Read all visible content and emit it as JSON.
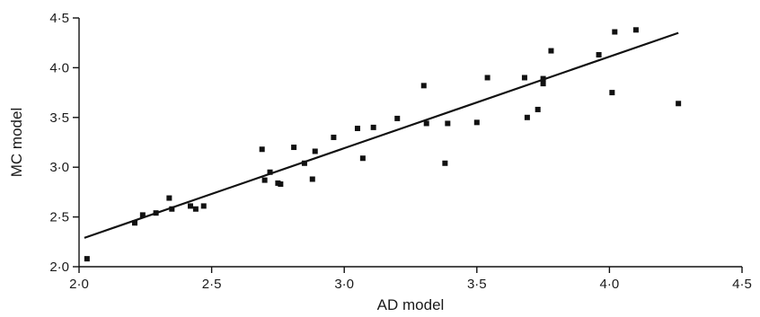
{
  "chart_data": {
    "type": "scatter",
    "xlabel": "AD model",
    "ylabel": "MC model",
    "xlim": [
      2.0,
      4.5
    ],
    "ylim": [
      2.0,
      4.5
    ],
    "xticks": [
      2.0,
      2.5,
      3.0,
      3.5,
      4.0,
      4.5
    ],
    "yticks": [
      2.0,
      2.5,
      3.0,
      3.5,
      4.0,
      4.5
    ],
    "xtick_labels": [
      "2·0",
      "2·5",
      "3·0",
      "3·5",
      "4·0",
      "4·5"
    ],
    "ytick_labels": [
      "2·0",
      "2·5",
      "3·0",
      "3·5",
      "4·0",
      "4·5"
    ],
    "grid": false,
    "marker": "square",
    "color": "#111111",
    "points": [
      [
        2.03,
        2.08
      ],
      [
        2.21,
        2.44
      ],
      [
        2.24,
        2.52
      ],
      [
        2.29,
        2.54
      ],
      [
        2.34,
        2.69
      ],
      [
        2.35,
        2.58
      ],
      [
        2.42,
        2.61
      ],
      [
        2.44,
        2.58
      ],
      [
        2.47,
        2.61
      ],
      [
        2.69,
        3.18
      ],
      [
        2.7,
        2.87
      ],
      [
        2.72,
        2.95
      ],
      [
        2.75,
        2.84
      ],
      [
        2.76,
        2.83
      ],
      [
        2.81,
        3.2
      ],
      [
        2.85,
        3.04
      ],
      [
        2.88,
        2.88
      ],
      [
        2.89,
        3.16
      ],
      [
        2.96,
        3.3
      ],
      [
        3.05,
        3.39
      ],
      [
        3.07,
        3.09
      ],
      [
        3.11,
        3.4
      ],
      [
        3.2,
        3.49
      ],
      [
        3.3,
        3.82
      ],
      [
        3.31,
        3.44
      ],
      [
        3.38,
        3.04
      ],
      [
        3.39,
        3.44
      ],
      [
        3.5,
        3.45
      ],
      [
        3.54,
        3.9
      ],
      [
        3.68,
        3.9
      ],
      [
        3.69,
        3.5
      ],
      [
        3.73,
        3.58
      ],
      [
        3.75,
        3.84
      ],
      [
        3.75,
        3.89
      ],
      [
        3.78,
        4.17
      ],
      [
        3.96,
        4.13
      ],
      [
        4.01,
        3.75
      ],
      [
        4.02,
        4.36
      ],
      [
        4.1,
        4.38
      ],
      [
        4.26,
        3.64
      ]
    ],
    "fit_line": {
      "x": [
        2.02,
        4.26
      ],
      "y": [
        2.29,
        4.35
      ]
    }
  }
}
